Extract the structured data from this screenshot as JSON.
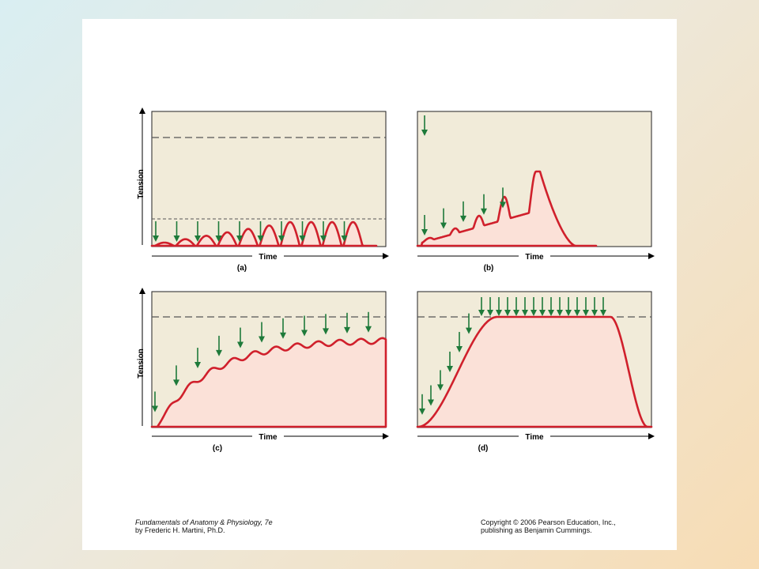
{
  "panels": [
    {
      "id": "a",
      "label": "(a)",
      "xlabel": "Time",
      "ylabel": "Tension",
      "behavior": "separate twitches (treppe)"
    },
    {
      "id": "b",
      "label": "(b)",
      "xlabel": "Time",
      "ylabel": "",
      "behavior": "wave summation then relaxation"
    },
    {
      "id": "c",
      "label": "(c)",
      "xlabel": "Time",
      "ylabel": "Tension",
      "behavior": "incomplete tetanus"
    },
    {
      "id": "d",
      "label": "(d)",
      "xlabel": "Time",
      "ylabel": "",
      "behavior": "complete tetanus"
    }
  ],
  "colors": {
    "panel_bg": "#f1ebd9",
    "fill": "#fbe1d8",
    "curve": "#d0202c",
    "stimulus_arrow": "#1e7a3a",
    "dashed": "#555555"
  },
  "footer": {
    "book_title": "Fundamentals of Anatomy & Physiology, 7e",
    "author": "by Frederic H. Martini, Ph.D.",
    "copyright": "Copyright © 2006 Pearson Education, Inc.,",
    "publisher": "publishing as Benjamin Cummings."
  }
}
